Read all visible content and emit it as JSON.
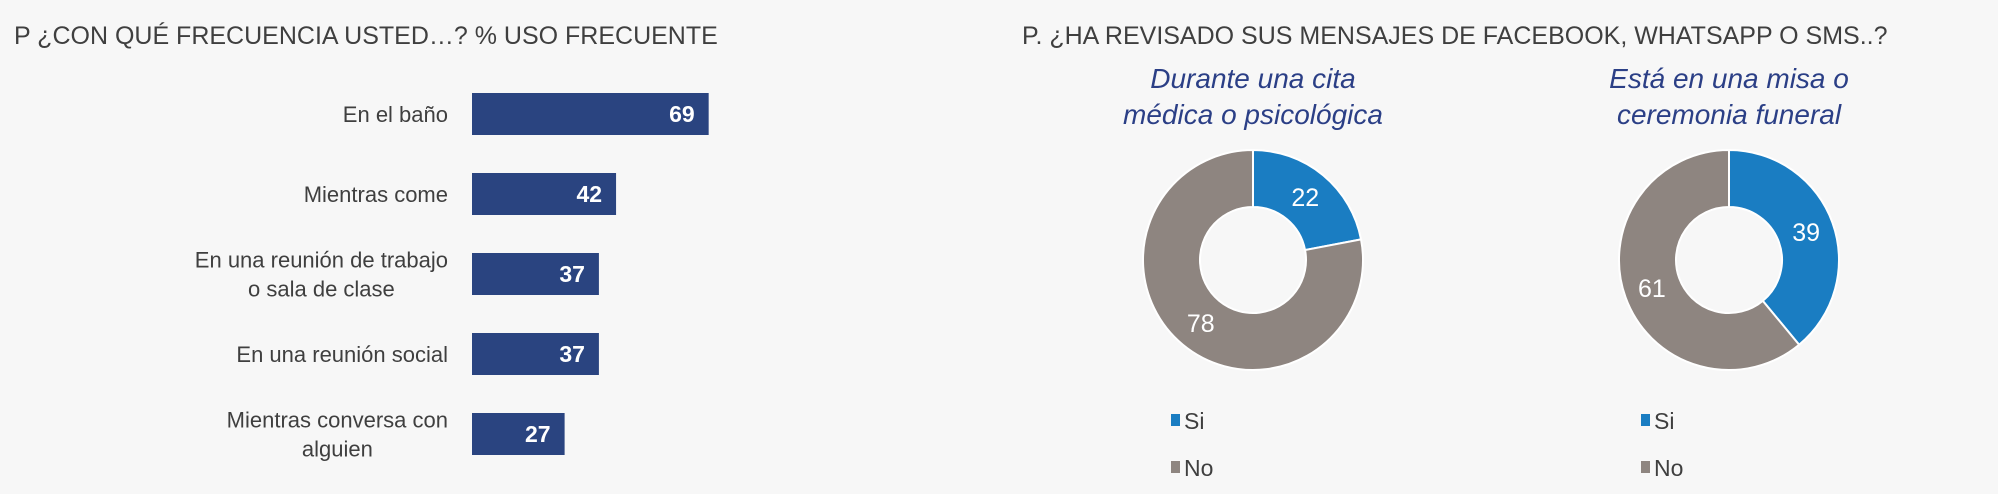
{
  "left_title": "P ¿CON QUÉ FRECUENCIA USTED…? % USO FRECUENTE",
  "right_title": "P. ¿HA REVISADO SUS MENSAJES DE FACEBOOK, WHATSAPP O SMS..?",
  "colors": {
    "bar": "#2a4480",
    "si": "#1a7dc2",
    "no": "#8e8580",
    "subtitle": "#2b3f86"
  },
  "chart_data": [
    {
      "type": "bar",
      "orientation": "horizontal",
      "title": "P ¿CON QUÉ FRECUENCIA USTED…? % USO FRECUENTE",
      "categories": [
        [
          "En el baño"
        ],
        [
          "Mientras come"
        ],
        [
          "En una reunión de trabajo",
          "o sala de clase"
        ],
        [
          "En una reunión social"
        ],
        [
          "Mientras conversa con",
          "alguien"
        ]
      ],
      "values": [
        69,
        42,
        37,
        37,
        27
      ],
      "grid": false
    },
    {
      "type": "pie",
      "donut": true,
      "title": [
        "Durante una cita",
        "médica o psicológica"
      ],
      "labels": [
        "Si",
        "No"
      ],
      "values": [
        22,
        78
      ],
      "legend": "bottom"
    },
    {
      "type": "pie",
      "donut": true,
      "title": [
        "Está en una misa o",
        "ceremonia funeral"
      ],
      "labels": [
        "Si",
        "No"
      ],
      "values": [
        39,
        61
      ],
      "legend": "bottom"
    }
  ]
}
